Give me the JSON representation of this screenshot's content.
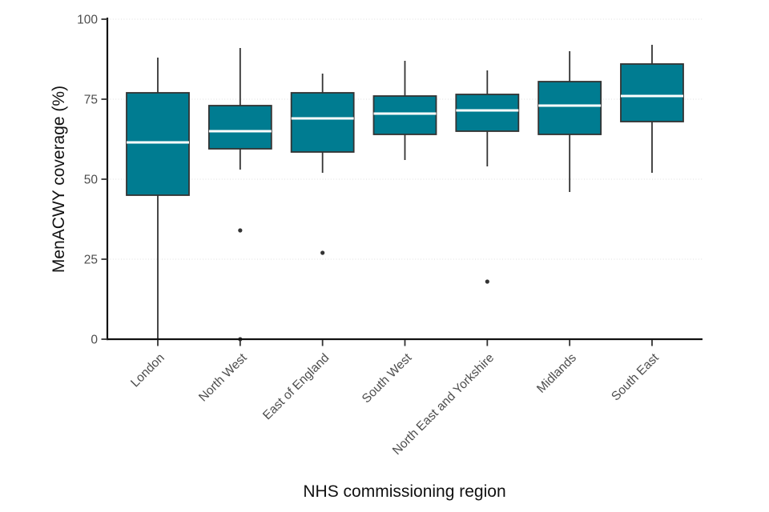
{
  "chart_data": {
    "type": "boxplot",
    "title": "",
    "xlabel": "NHS commissioning region",
    "ylabel": "MenACWY coverage (%)",
    "ylim": [
      0,
      100
    ],
    "yticks": [
      0,
      25,
      50,
      75,
      100
    ],
    "ytick_labels": [
      "0",
      "25",
      "50",
      "75",
      "100"
    ],
    "grid": "horizontal dotted lines at y ticks, no vertical grid",
    "legend": "none",
    "categories": [
      "London",
      "North West",
      "East of England",
      "South West",
      "North East and Yorkshire",
      "Midlands",
      "South East"
    ],
    "series": [
      {
        "name": "London",
        "whisker_low": 0,
        "q1": 45,
        "median": 61.5,
        "q3": 77,
        "whisker_high": 88,
        "outliers": []
      },
      {
        "name": "North West",
        "whisker_low": 53,
        "q1": 59.5,
        "median": 65,
        "q3": 73,
        "whisker_high": 91,
        "outliers": [
          34,
          0
        ]
      },
      {
        "name": "East of England",
        "whisker_low": 52,
        "q1": 58.5,
        "median": 69,
        "q3": 77,
        "whisker_high": 83,
        "outliers": [
          27
        ]
      },
      {
        "name": "South West",
        "whisker_low": 56,
        "q1": 64,
        "median": 70.5,
        "q3": 76,
        "whisker_high": 87,
        "outliers": []
      },
      {
        "name": "North East and Yorkshire",
        "whisker_low": 54,
        "q1": 65,
        "median": 71.5,
        "q3": 76.5,
        "whisker_high": 84,
        "outliers": [
          18
        ]
      },
      {
        "name": "Midlands",
        "whisker_low": 46,
        "q1": 64,
        "median": 73,
        "q3": 80.5,
        "whisker_high": 90,
        "outliers": []
      },
      {
        "name": "South East",
        "whisker_low": 52,
        "q1": 68,
        "median": 76,
        "q3": 86,
        "whisker_high": 92,
        "outliers": []
      }
    ],
    "colors": {
      "box_fill": "#007C91",
      "box_border": "#333333",
      "median_line": "#FFFFFF",
      "whisker": "#333333",
      "outlier": "#333333",
      "gridline": "#E4E4E4",
      "axis_line": "#111111",
      "tick_mark": "#333333",
      "tick_text": "#4d4d4d",
      "title_text": "#111111"
    }
  }
}
